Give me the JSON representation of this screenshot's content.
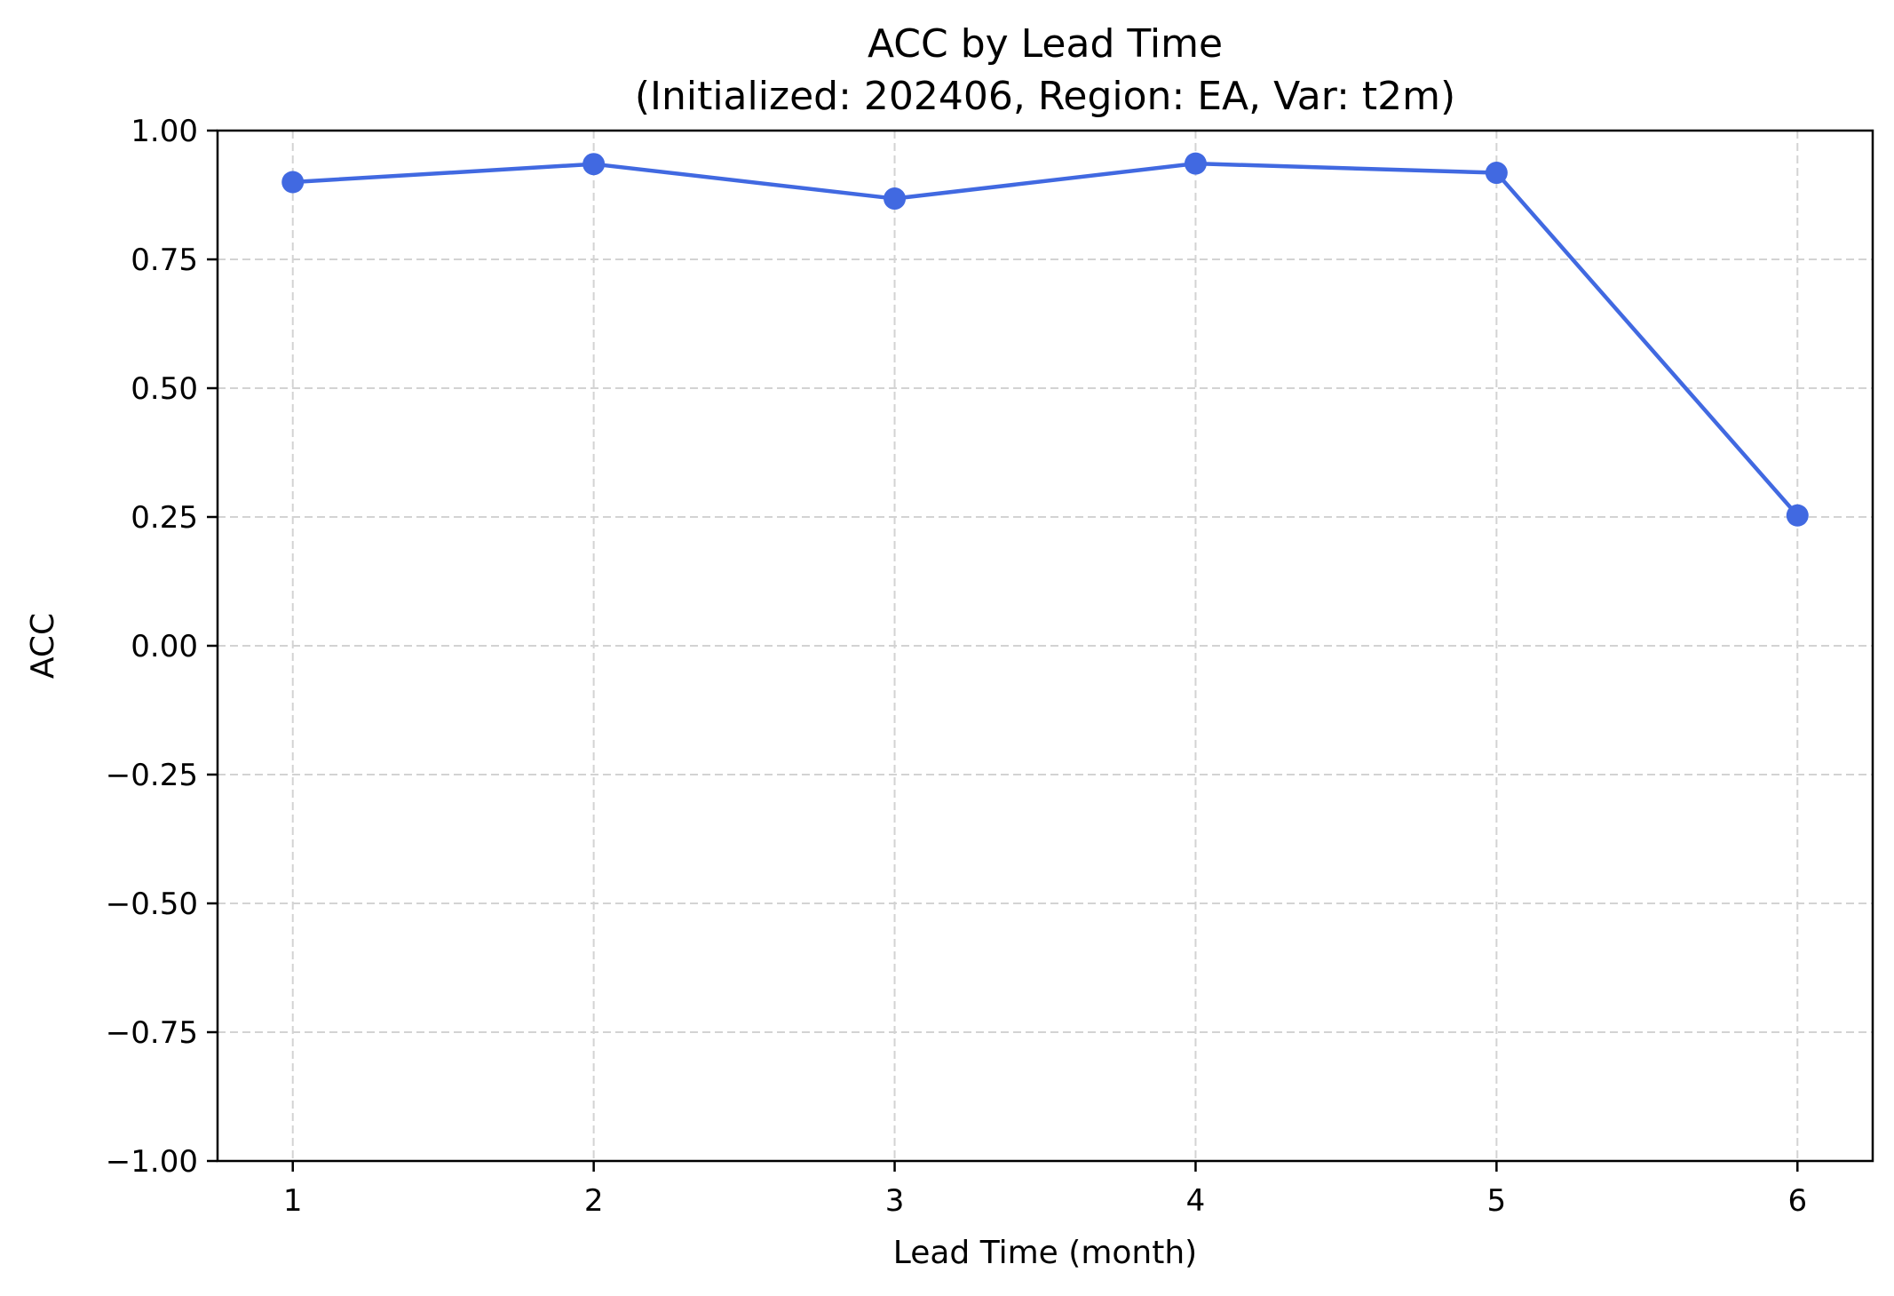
{
  "chart_data": {
    "type": "line",
    "title": "ACC by Lead Time",
    "subtitle": "(Initialized: 202406, Region: EA, Var: t2m)",
    "xlabel": "Lead Time (month)",
    "ylabel": "ACC",
    "x": [
      1,
      2,
      3,
      4,
      5,
      6
    ],
    "x_tick_labels": [
      "1",
      "2",
      "3",
      "4",
      "5",
      "6"
    ],
    "y_ticks": [
      1.0,
      0.75,
      0.5,
      0.25,
      0.0,
      -0.25,
      -0.5,
      -0.75,
      -1.0
    ],
    "y_tick_labels": [
      "1.00",
      "0.75",
      "0.50",
      "0.25",
      "0.00",
      "−0.25",
      "−0.50",
      "−0.75",
      "−1.00"
    ],
    "xlim": [
      0.75,
      6.25
    ],
    "ylim": [
      -1.0,
      1.0
    ],
    "grid": true,
    "grid_style": "dashed",
    "series": [
      {
        "values": [
          0.9,
          0.935,
          0.868,
          0.936,
          0.918,
          0.253
        ],
        "color": "#4169e1",
        "marker": "circle"
      }
    ],
    "colors": {
      "line": "#4169e1",
      "grid": "#d3d3d3",
      "axes": "#000000",
      "text": "#000000"
    }
  }
}
